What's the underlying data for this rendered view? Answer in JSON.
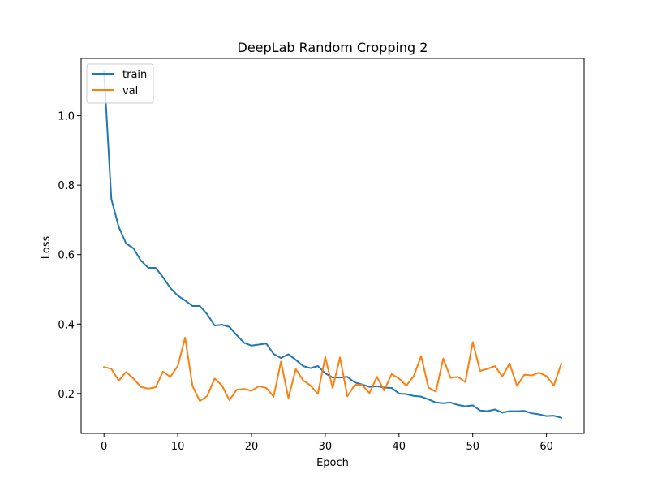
{
  "chart_data": {
    "type": "line",
    "title": "DeepLab Random Cropping 2",
    "xlabel": "Epoch",
    "ylabel": "Loss",
    "xlim": [
      -3.1,
      65.1
    ],
    "ylim": [
      0.085,
      1.165
    ],
    "xticks": [
      0,
      10,
      20,
      30,
      40,
      50,
      60
    ],
    "yticks": [
      0.2,
      0.4,
      0.6,
      0.8,
      1.0
    ],
    "ytick_labels": [
      "0.2",
      "0.4",
      "0.6",
      "0.8",
      "1.0"
    ],
    "grid": false,
    "legend_position": "top-left",
    "series": [
      {
        "name": "train",
        "color": "#1f77b4",
        "values": [
          1.13,
          0.76,
          0.68,
          0.632,
          0.618,
          0.583,
          0.562,
          0.562,
          0.535,
          0.504,
          0.482,
          0.468,
          0.452,
          0.452,
          0.428,
          0.396,
          0.398,
          0.392,
          0.368,
          0.346,
          0.338,
          0.341,
          0.344,
          0.314,
          0.302,
          0.313,
          0.297,
          0.279,
          0.273,
          0.279,
          0.258,
          0.246,
          0.246,
          0.248,
          0.232,
          0.226,
          0.219,
          0.221,
          0.217,
          0.216,
          0.2,
          0.198,
          0.193,
          0.191,
          0.183,
          0.174,
          0.172,
          0.174,
          0.167,
          0.163,
          0.166,
          0.151,
          0.149,
          0.154,
          0.145,
          0.149,
          0.149,
          0.15,
          0.143,
          0.14,
          0.135,
          0.136,
          0.13
        ]
      },
      {
        "name": "val",
        "color": "#ff7f0e",
        "values": [
          0.276,
          0.271,
          0.237,
          0.262,
          0.243,
          0.219,
          0.214,
          0.218,
          0.263,
          0.248,
          0.279,
          0.361,
          0.222,
          0.178,
          0.193,
          0.243,
          0.223,
          0.181,
          0.211,
          0.213,
          0.208,
          0.221,
          0.216,
          0.191,
          0.292,
          0.187,
          0.27,
          0.238,
          0.223,
          0.199,
          0.305,
          0.216,
          0.304,
          0.192,
          0.225,
          0.225,
          0.201,
          0.248,
          0.209,
          0.256,
          0.243,
          0.223,
          0.25,
          0.308,
          0.217,
          0.205,
          0.301,
          0.245,
          0.248,
          0.233,
          0.348,
          0.265,
          0.271,
          0.279,
          0.249,
          0.286,
          0.222,
          0.254,
          0.252,
          0.26,
          0.25,
          0.223,
          0.286
        ]
      }
    ]
  }
}
